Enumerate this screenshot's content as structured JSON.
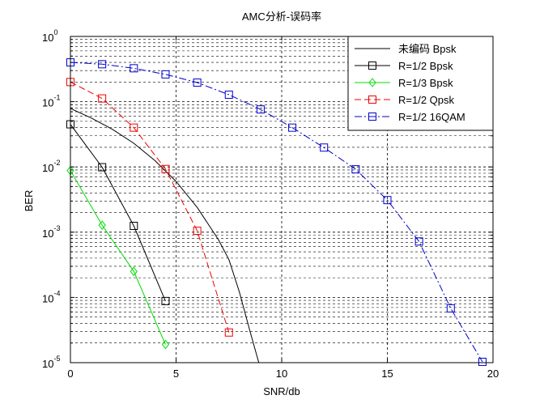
{
  "chart_data": {
    "type": "line",
    "title": "AMC分析-误码率",
    "xlabel": "SNR/db",
    "ylabel": "BER",
    "xlim": [
      0,
      20
    ],
    "ylim": [
      1e-05,
      1
    ],
    "yscale": "log",
    "grid": true,
    "legend_position": "top-right",
    "xticks": [
      0,
      5,
      10,
      15,
      20
    ],
    "yticks": [
      {
        "base": "10",
        "exp": "-5",
        "value": 1e-05
      },
      {
        "base": "10",
        "exp": "-4",
        "value": 0.0001
      },
      {
        "base": "10",
        "exp": "-3",
        "value": 0.001
      },
      {
        "base": "10",
        "exp": "-2",
        "value": 0.01
      },
      {
        "base": "10",
        "exp": "-1",
        "value": 0.1
      },
      {
        "base": "10",
        "exp": "0",
        "value": 1
      }
    ],
    "series": [
      {
        "name": "未编码 Bpsk",
        "color": "#000000",
        "dash": "solid",
        "marker": "none",
        "x": [
          0,
          1,
          2,
          3,
          4,
          5,
          6,
          7,
          7.5,
          8,
          8.5,
          9
        ],
        "y": [
          0.079,
          0.056,
          0.0375,
          0.023,
          0.0125,
          0.006,
          0.0024,
          0.00077,
          0.00038,
          0.00012,
          3e-05,
          8e-06
        ]
      },
      {
        "name": "R=1/2 Bpsk",
        "color": "#000000",
        "dash": "solid",
        "marker": "square",
        "x": [
          0,
          1.5,
          3,
          4.5
        ],
        "y": [
          0.045,
          0.0099,
          0.00125,
          8.8e-05
        ]
      },
      {
        "name": "R=1/3 Bpsk",
        "color": "#00dd00",
        "dash": "solid",
        "marker": "diamond",
        "x": [
          0,
          1.5,
          3,
          4.5
        ],
        "y": [
          0.0088,
          0.00128,
          0.00025,
          1.9e-05
        ]
      },
      {
        "name": "R=1/2 Qpsk",
        "color": "#ee0000",
        "dash": "dash",
        "marker": "square",
        "x": [
          0,
          1.5,
          3,
          4.5,
          6,
          7.5
        ],
        "y": [
          0.2,
          0.112,
          0.04,
          0.0093,
          0.00105,
          2.9e-05
        ]
      },
      {
        "name": "R=1/2 16QAM",
        "color": "#0000cc",
        "dash": "dashdot",
        "marker": "square",
        "x": [
          0,
          1.5,
          3,
          4.5,
          6,
          7.5,
          9,
          10.5,
          12,
          13.5,
          15,
          16.5,
          18,
          19.5
        ],
        "y": [
          0.4,
          0.375,
          0.325,
          0.262,
          0.196,
          0.128,
          0.076,
          0.04,
          0.0198,
          0.0092,
          0.0031,
          0.00072,
          6.8e-05,
          1.03e-05
        ]
      }
    ]
  }
}
